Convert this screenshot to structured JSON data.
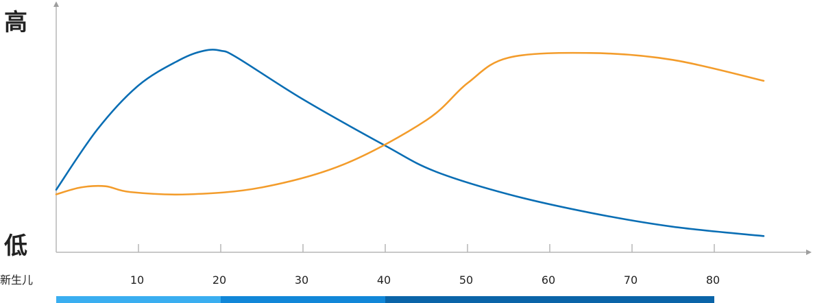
{
  "chart_data": {
    "type": "line",
    "y_axis": {
      "top_label": "高",
      "bottom_label": "低",
      "range": [
        0,
        100
      ],
      "tick_labels": false
    },
    "x_axis": {
      "origin_label": "新生儿",
      "range": [
        0,
        90
      ],
      "ticks": [
        10,
        20,
        30,
        40,
        50,
        60,
        70,
        80
      ],
      "tick_labels": [
        "10",
        "20",
        "30",
        "40",
        "50",
        "60",
        "70",
        "80"
      ]
    },
    "series": [
      {
        "color": "#0a6eb4",
        "points": [
          [
            0,
            27
          ],
          [
            5,
            53
          ],
          [
            10,
            72
          ],
          [
            15,
            83
          ],
          [
            18,
            87
          ],
          [
            20,
            87
          ],
          [
            22,
            84
          ],
          [
            30,
            66
          ],
          [
            40,
            46
          ],
          [
            46,
            35
          ],
          [
            55,
            25
          ],
          [
            65,
            17
          ],
          [
            75,
            11
          ],
          [
            86,
            7
          ]
        ]
      },
      {
        "color": "#f39c2b",
        "points": [
          [
            0,
            25
          ],
          [
            3,
            28
          ],
          [
            6,
            28.5
          ],
          [
            9,
            26
          ],
          [
            16,
            25
          ],
          [
            25,
            28
          ],
          [
            35,
            38
          ],
          [
            45,
            57
          ],
          [
            50,
            73
          ],
          [
            55,
            84
          ],
          [
            65,
            86
          ],
          [
            75,
            83
          ],
          [
            86,
            74
          ]
        ]
      }
    ],
    "age_bands": [
      {
        "from": 0,
        "to": 20,
        "color": "#3aaef0"
      },
      {
        "from": 20,
        "to": 40,
        "color": "#1187d8"
      },
      {
        "from": 40,
        "to": 80,
        "color": "#0a64a8"
      }
    ],
    "grid": false,
    "legend": "none"
  }
}
